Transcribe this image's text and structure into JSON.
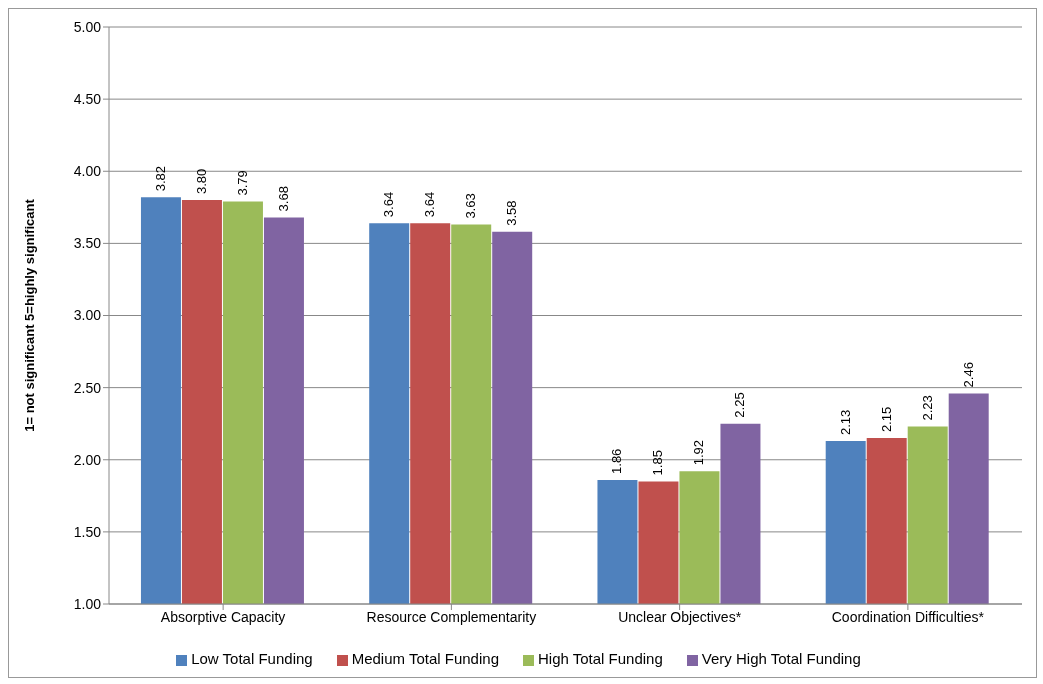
{
  "chart_data": {
    "type": "bar",
    "ylabel": "1= not significant   5=highly significant",
    "categories": [
      "Absorptive Capacity",
      "Resource Complementarity",
      "Unclear Objectives*",
      "Coordination Difficulties*"
    ],
    "series": [
      {
        "name": "Low Total  Funding",
        "color": "#4f81bd",
        "values": [
          3.82,
          3.64,
          1.86,
          2.13
        ],
        "value_labels": [
          "3.82",
          "3.64",
          "1.86",
          "2.13"
        ]
      },
      {
        "name": "Medium Total Funding",
        "color": "#c0504d",
        "values": [
          3.8,
          3.64,
          1.85,
          2.15
        ],
        "value_labels": [
          "3.80",
          "3.64",
          "1.85",
          "2.15"
        ]
      },
      {
        "name": "High Total Funding",
        "color": "#9bbb59",
        "values": [
          3.79,
          3.63,
          1.92,
          2.23
        ],
        "value_labels": [
          "3.79",
          "3.63",
          "1.92",
          "2.23"
        ]
      },
      {
        "name": "Very High Total Funding",
        "color": "#8064a2",
        "values": [
          3.68,
          3.58,
          2.25,
          2.46
        ],
        "value_labels": [
          "3.68",
          "3.58",
          "2.25",
          "2.46"
        ]
      }
    ],
    "ylim": [
      1,
      5
    ],
    "yticks": [
      {
        "value": 1,
        "label": "1.00"
      },
      {
        "value": 1.5,
        "label": "1.50"
      },
      {
        "value": 2,
        "label": "2.00"
      },
      {
        "value": 2.5,
        "label": "2.50"
      },
      {
        "value": 3,
        "label": "3.00"
      },
      {
        "value": 3.5,
        "label": "3.50"
      },
      {
        "value": 4,
        "label": "4.00"
      },
      {
        "value": 4.5,
        "label": "4.50"
      },
      {
        "value": 5,
        "label": "5.00"
      }
    ],
    "grid": "y",
    "legend": "bottom"
  }
}
